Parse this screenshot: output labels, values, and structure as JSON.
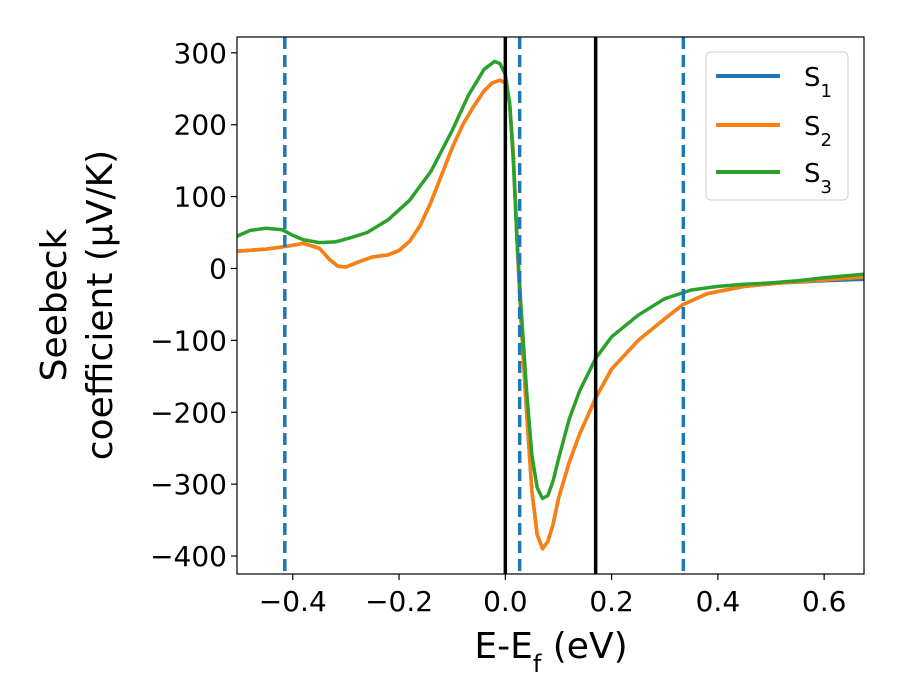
{
  "chart_data": {
    "type": "line",
    "xlabel": "E-E",
    "xlabel_sub": "f",
    "xlabel_unit": " (eV)",
    "ylabel_line1": "Seebeck",
    "ylabel_line2": "coefficient  (μV/K)",
    "xlim": [
      -0.505,
      0.675
    ],
    "ylim": [
      -425,
      322
    ],
    "x_ticks": [
      -0.4,
      -0.2,
      0.0,
      0.2,
      0.4,
      0.6
    ],
    "x_tick_labels": [
      "−0.4",
      "−0.2",
      "0.0",
      "0.2",
      "0.4",
      "0.6"
    ],
    "y_ticks": [
      300,
      200,
      100,
      0,
      -100,
      -200,
      -300,
      -400
    ],
    "y_tick_labels": [
      "300",
      "200",
      "100",
      "0",
      "−100",
      "−200",
      "−300",
      "−400"
    ],
    "grid": false,
    "legend_position": "top-right",
    "colors": {
      "s1": "#1f77b4",
      "s2": "#ff7f0e",
      "s3": "#2ca02c",
      "vline_solid": "#000000",
      "vline_dashed": "#1f77b4"
    },
    "series": [
      {
        "name": "S",
        "sub": "1",
        "color": "#1f77b4",
        "x": [
          -0.505,
          -0.45,
          -0.41,
          -0.38,
          -0.35,
          -0.33,
          -0.315,
          -0.3,
          -0.29,
          -0.27,
          -0.25,
          -0.22,
          -0.2,
          -0.18,
          -0.16,
          -0.14,
          -0.12,
          -0.1,
          -0.08,
          -0.06,
          -0.04,
          -0.025,
          -0.01,
          0.0,
          0.008,
          0.015,
          0.022,
          0.03,
          0.04,
          0.05,
          0.06,
          0.07,
          0.08,
          0.09,
          0.1,
          0.12,
          0.14,
          0.17,
          0.2,
          0.25,
          0.3,
          0.335,
          0.38,
          0.45,
          0.52,
          0.6,
          0.675
        ],
        "y": [
          24,
          27,
          31,
          35,
          28,
          12,
          3,
          2,
          5,
          11,
          16,
          19,
          25,
          38,
          60,
          92,
          130,
          168,
          200,
          225,
          247,
          258,
          262,
          258,
          230,
          160,
          40,
          -80,
          -200,
          -310,
          -370,
          -390,
          -380,
          -355,
          -320,
          -270,
          -230,
          -180,
          -140,
          -100,
          -70,
          -50,
          -35,
          -25,
          -20,
          -17,
          -15
        ]
      },
      {
        "name": "S",
        "sub": "2",
        "color": "#ff7f0e",
        "x": [
          -0.505,
          -0.45,
          -0.41,
          -0.38,
          -0.35,
          -0.33,
          -0.315,
          -0.3,
          -0.29,
          -0.27,
          -0.25,
          -0.22,
          -0.2,
          -0.18,
          -0.16,
          -0.14,
          -0.12,
          -0.1,
          -0.08,
          -0.06,
          -0.04,
          -0.025,
          -0.01,
          0.0,
          0.008,
          0.015,
          0.022,
          0.03,
          0.04,
          0.05,
          0.06,
          0.07,
          0.08,
          0.09,
          0.1,
          0.12,
          0.14,
          0.17,
          0.2,
          0.25,
          0.3,
          0.335,
          0.38,
          0.45,
          0.52,
          0.6,
          0.675
        ],
        "y": [
          24,
          27,
          31,
          35,
          28,
          12,
          3,
          2,
          5,
          11,
          16,
          19,
          25,
          38,
          60,
          92,
          130,
          168,
          200,
          225,
          247,
          258,
          262,
          258,
          230,
          160,
          40,
          -80,
          -200,
          -310,
          -370,
          -390,
          -380,
          -355,
          -320,
          -270,
          -230,
          -180,
          -140,
          -100,
          -70,
          -50,
          -35,
          -25,
          -20,
          -16,
          -12
        ]
      },
      {
        "name": "S",
        "sub": "3",
        "color": "#2ca02c",
        "x": [
          -0.505,
          -0.48,
          -0.45,
          -0.42,
          -0.4,
          -0.38,
          -0.35,
          -0.32,
          -0.29,
          -0.26,
          -0.22,
          -0.18,
          -0.14,
          -0.1,
          -0.07,
          -0.04,
          -0.02,
          -0.01,
          0.0,
          0.008,
          0.015,
          0.022,
          0.03,
          0.04,
          0.05,
          0.06,
          0.07,
          0.08,
          0.09,
          0.1,
          0.12,
          0.14,
          0.17,
          0.2,
          0.25,
          0.3,
          0.35,
          0.4,
          0.45,
          0.5,
          0.55,
          0.6,
          0.675
        ],
        "y": [
          45,
          53,
          56,
          54,
          46,
          40,
          36,
          37,
          43,
          50,
          68,
          95,
          135,
          192,
          240,
          277,
          288,
          285,
          270,
          230,
          150,
          40,
          -60,
          -170,
          -260,
          -305,
          -320,
          -316,
          -295,
          -265,
          -210,
          -170,
          -125,
          -95,
          -65,
          -42,
          -30,
          -25,
          -22,
          -20,
          -17,
          -13,
          -8
        ]
      }
    ],
    "vlines_solid": [
      0.0,
      0.17
    ],
    "vlines_dashed": [
      -0.415,
      0.027,
      0.335
    ]
  }
}
